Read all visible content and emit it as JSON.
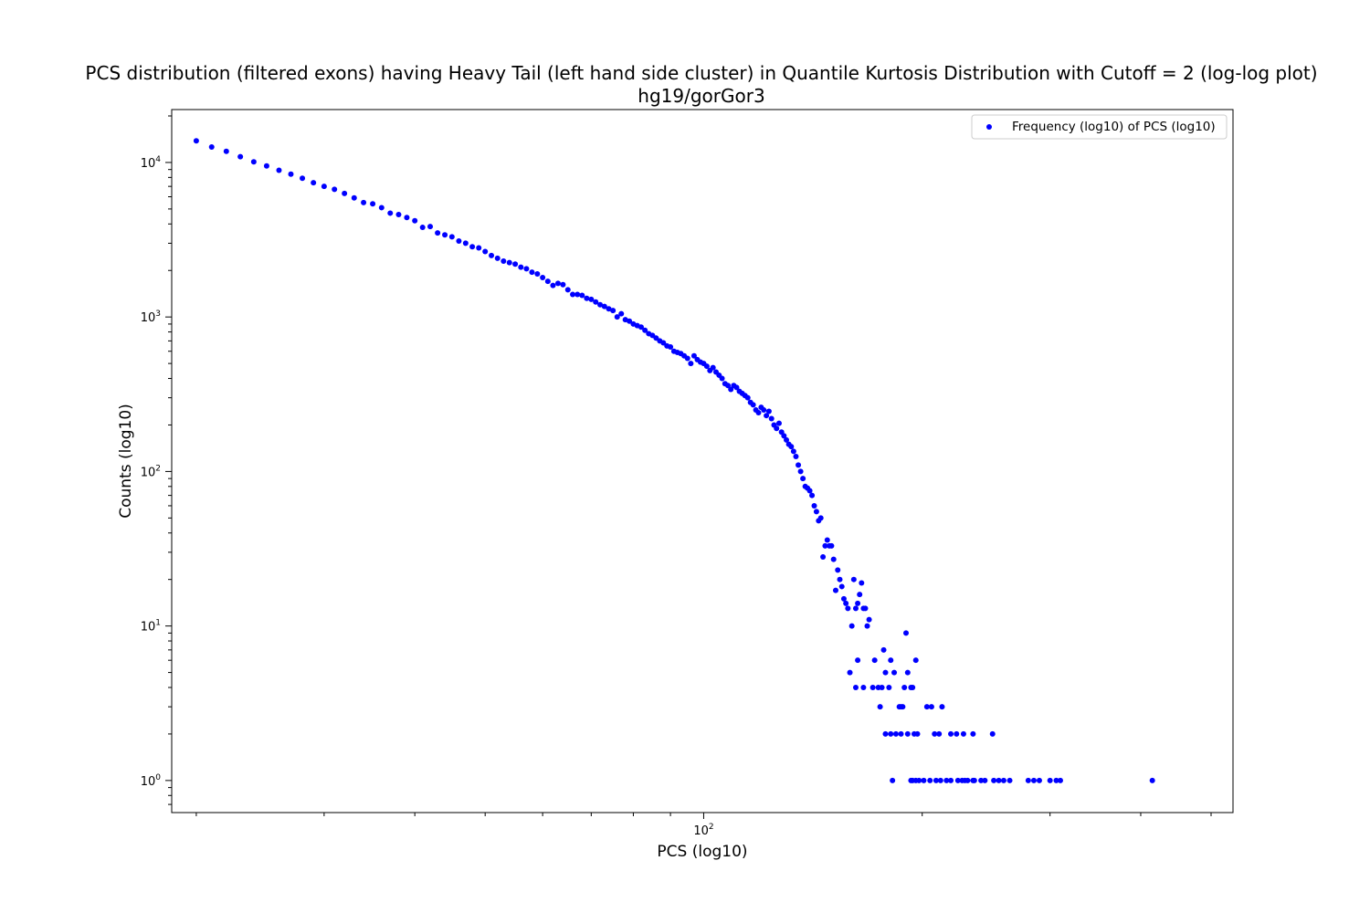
{
  "chart_data": {
    "type": "scatter",
    "title": "PCS distribution (filtered exons) having Heavy Tail (left hand side cluster) in Quantile Kurtosis Distribution with Cutoff = 2 (log-log plot)",
    "subtitle": "hg19/gorGor3",
    "xlabel": "PCS (log10)",
    "ylabel": "Counts (log10)",
    "xscale": "log",
    "yscale": "log",
    "xlim": [
      18.5,
      536
    ],
    "ylim": [
      0.62,
      22000
    ],
    "grid": false,
    "legend_position": "top-right",
    "marker_color": "#0000ff",
    "x_tick_labels": [
      {
        "value": 100,
        "label": "10",
        "exp": "2"
      }
    ],
    "y_tick_labels": [
      {
        "value": 1,
        "label": "10",
        "exp": "0"
      },
      {
        "value": 10,
        "label": "10",
        "exp": "1"
      },
      {
        "value": 100,
        "label": "10",
        "exp": "2"
      },
      {
        "value": 1000,
        "label": "10",
        "exp": "3"
      },
      {
        "value": 10000,
        "label": "10",
        "exp": "4"
      }
    ],
    "series": [
      {
        "name": "Frequency (log10) of PCS (log10)",
        "points": [
          [
            20,
            13800
          ],
          [
            21,
            12600
          ],
          [
            22,
            11800
          ],
          [
            23,
            10900
          ],
          [
            24,
            10100
          ],
          [
            25,
            9500
          ],
          [
            26,
            8900
          ],
          [
            27,
            8400
          ],
          [
            28,
            7900
          ],
          [
            29,
            7400
          ],
          [
            30,
            7000
          ],
          [
            31,
            6700
          ],
          [
            32,
            6300
          ],
          [
            33,
            5900
          ],
          [
            34,
            5500
          ],
          [
            35,
            5400
          ],
          [
            36,
            5100
          ],
          [
            37,
            4700
          ],
          [
            38,
            4600
          ],
          [
            39,
            4400
          ],
          [
            40,
            4200
          ],
          [
            41,
            3800
          ],
          [
            42,
            3850
          ],
          [
            43,
            3500
          ],
          [
            44,
            3400
          ],
          [
            45,
            3300
          ],
          [
            46,
            3100
          ],
          [
            47,
            3000
          ],
          [
            48,
            2850
          ],
          [
            49,
            2800
          ],
          [
            50,
            2650
          ],
          [
            51,
            2500
          ],
          [
            52,
            2400
          ],
          [
            53,
            2300
          ],
          [
            54,
            2250
          ],
          [
            55,
            2200
          ],
          [
            56,
            2100
          ],
          [
            57,
            2050
          ],
          [
            58,
            1950
          ],
          [
            59,
            1900
          ],
          [
            60,
            1800
          ],
          [
            61,
            1700
          ],
          [
            62,
            1600
          ],
          [
            63,
            1650
          ],
          [
            64,
            1620
          ],
          [
            65,
            1500
          ],
          [
            66,
            1400
          ],
          [
            67,
            1400
          ],
          [
            68,
            1380
          ],
          [
            69,
            1320
          ],
          [
            70,
            1300
          ],
          [
            71,
            1250
          ],
          [
            72,
            1200
          ],
          [
            73,
            1170
          ],
          [
            74,
            1130
          ],
          [
            75,
            1100
          ],
          [
            76,
            1000
          ],
          [
            77,
            1050
          ],
          [
            78,
            960
          ],
          [
            79,
            940
          ],
          [
            80,
            900
          ],
          [
            81,
            880
          ],
          [
            82,
            860
          ],
          [
            83,
            820
          ],
          [
            84,
            780
          ],
          [
            85,
            760
          ],
          [
            86,
            730
          ],
          [
            87,
            700
          ],
          [
            88,
            680
          ],
          [
            89,
            650
          ],
          [
            90,
            640
          ],
          [
            91,
            600
          ],
          [
            92,
            590
          ],
          [
            93,
            580
          ],
          [
            94,
            560
          ],
          [
            95,
            540
          ],
          [
            96,
            500
          ],
          [
            97,
            560
          ],
          [
            98,
            530
          ],
          [
            99,
            510
          ],
          [
            100,
            500
          ],
          [
            101,
            480
          ],
          [
            102,
            450
          ],
          [
            103,
            470
          ],
          [
            104,
            440
          ],
          [
            105,
            420
          ],
          [
            106,
            400
          ],
          [
            107,
            370
          ],
          [
            108,
            360
          ],
          [
            109,
            340
          ],
          [
            110,
            360
          ],
          [
            111,
            350
          ],
          [
            112,
            330
          ],
          [
            113,
            320
          ],
          [
            114,
            310
          ],
          [
            115,
            300
          ],
          [
            116,
            280
          ],
          [
            117,
            270
          ],
          [
            118,
            250
          ],
          [
            119,
            240
          ],
          [
            120,
            260
          ],
          [
            121,
            250
          ],
          [
            122,
            230
          ],
          [
            123,
            245
          ],
          [
            124,
            220
          ],
          [
            125,
            200
          ],
          [
            126,
            190
          ],
          [
            127,
            205
          ],
          [
            128,
            180
          ],
          [
            129,
            170
          ],
          [
            130,
            160
          ],
          [
            131,
            150
          ],
          [
            132,
            145
          ],
          [
            133,
            135
          ],
          [
            134,
            125
          ],
          [
            135,
            110
          ],
          [
            136,
            100
          ],
          [
            137,
            90
          ],
          [
            138,
            80
          ],
          [
            139,
            78
          ],
          [
            140,
            75
          ],
          [
            141,
            70
          ],
          [
            142,
            60
          ],
          [
            143,
            55
          ],
          [
            144,
            48
          ],
          [
            145,
            50
          ],
          [
            146,
            28
          ],
          [
            147,
            33
          ],
          [
            148,
            36
          ],
          [
            149,
            33
          ],
          [
            150,
            33
          ],
          [
            151,
            27
          ],
          [
            152,
            17
          ],
          [
            153,
            23
          ],
          [
            154,
            20
          ],
          [
            155,
            18
          ],
          [
            156,
            15
          ],
          [
            157,
            14
          ],
          [
            158,
            13
          ],
          [
            160,
            10
          ],
          [
            161,
            20
          ],
          [
            162,
            13
          ],
          [
            163,
            14
          ],
          [
            164,
            16
          ],
          [
            165,
            19
          ],
          [
            166,
            13
          ],
          [
            167,
            13
          ],
          [
            168,
            10
          ],
          [
            169,
            11
          ],
          [
            159,
            5
          ],
          [
            163,
            6
          ],
          [
            172,
            6
          ],
          [
            177,
            7
          ],
          [
            181,
            6
          ],
          [
            171,
            4
          ],
          [
            174,
            4
          ],
          [
            176,
            4
          ],
          [
            178,
            5
          ],
          [
            180,
            4
          ],
          [
            183,
            5
          ],
          [
            186,
            3
          ],
          [
            187,
            3
          ],
          [
            188,
            3
          ],
          [
            189,
            4
          ],
          [
            190,
            9
          ],
          [
            191,
            5
          ],
          [
            193,
            4
          ],
          [
            194,
            4
          ],
          [
            196,
            6
          ],
          [
            203,
            3
          ],
          [
            206,
            3
          ],
          [
            213,
            3
          ],
          [
            162,
            4
          ],
          [
            166,
            4
          ],
          [
            175,
            3
          ],
          [
            178,
            2
          ],
          [
            181,
            2
          ],
          [
            184,
            2
          ],
          [
            187,
            2
          ],
          [
            191,
            2
          ],
          [
            195,
            2
          ],
          [
            197,
            2
          ],
          [
            208,
            2
          ],
          [
            211,
            2
          ],
          [
            219,
            2
          ],
          [
            223,
            2
          ],
          [
            228,
            2
          ],
          [
            235,
            2
          ],
          [
            182,
            1
          ],
          [
            193,
            1
          ],
          [
            194,
            1
          ],
          [
            196,
            1
          ],
          [
            198,
            1
          ],
          [
            201,
            1
          ],
          [
            205,
            1
          ],
          [
            209,
            1
          ],
          [
            212,
            1
          ],
          [
            216,
            1
          ],
          [
            219,
            1
          ],
          [
            224,
            1
          ],
          [
            227,
            1
          ],
          [
            229,
            1
          ],
          [
            231,
            1
          ],
          [
            236,
            1
          ],
          [
            241,
            1
          ],
          [
            244,
            1
          ],
          [
            251,
            1
          ],
          [
            255,
            1
          ],
          [
            259,
            1
          ],
          [
            264,
            1
          ],
          [
            280,
            1
          ],
          [
            285,
            1
          ],
          [
            290,
            1
          ],
          [
            300,
            1
          ],
          [
            306,
            1
          ],
          [
            310,
            1
          ],
          [
            250,
            2
          ],
          [
            235,
            1
          ],
          [
            415,
            1
          ]
        ]
      }
    ]
  }
}
